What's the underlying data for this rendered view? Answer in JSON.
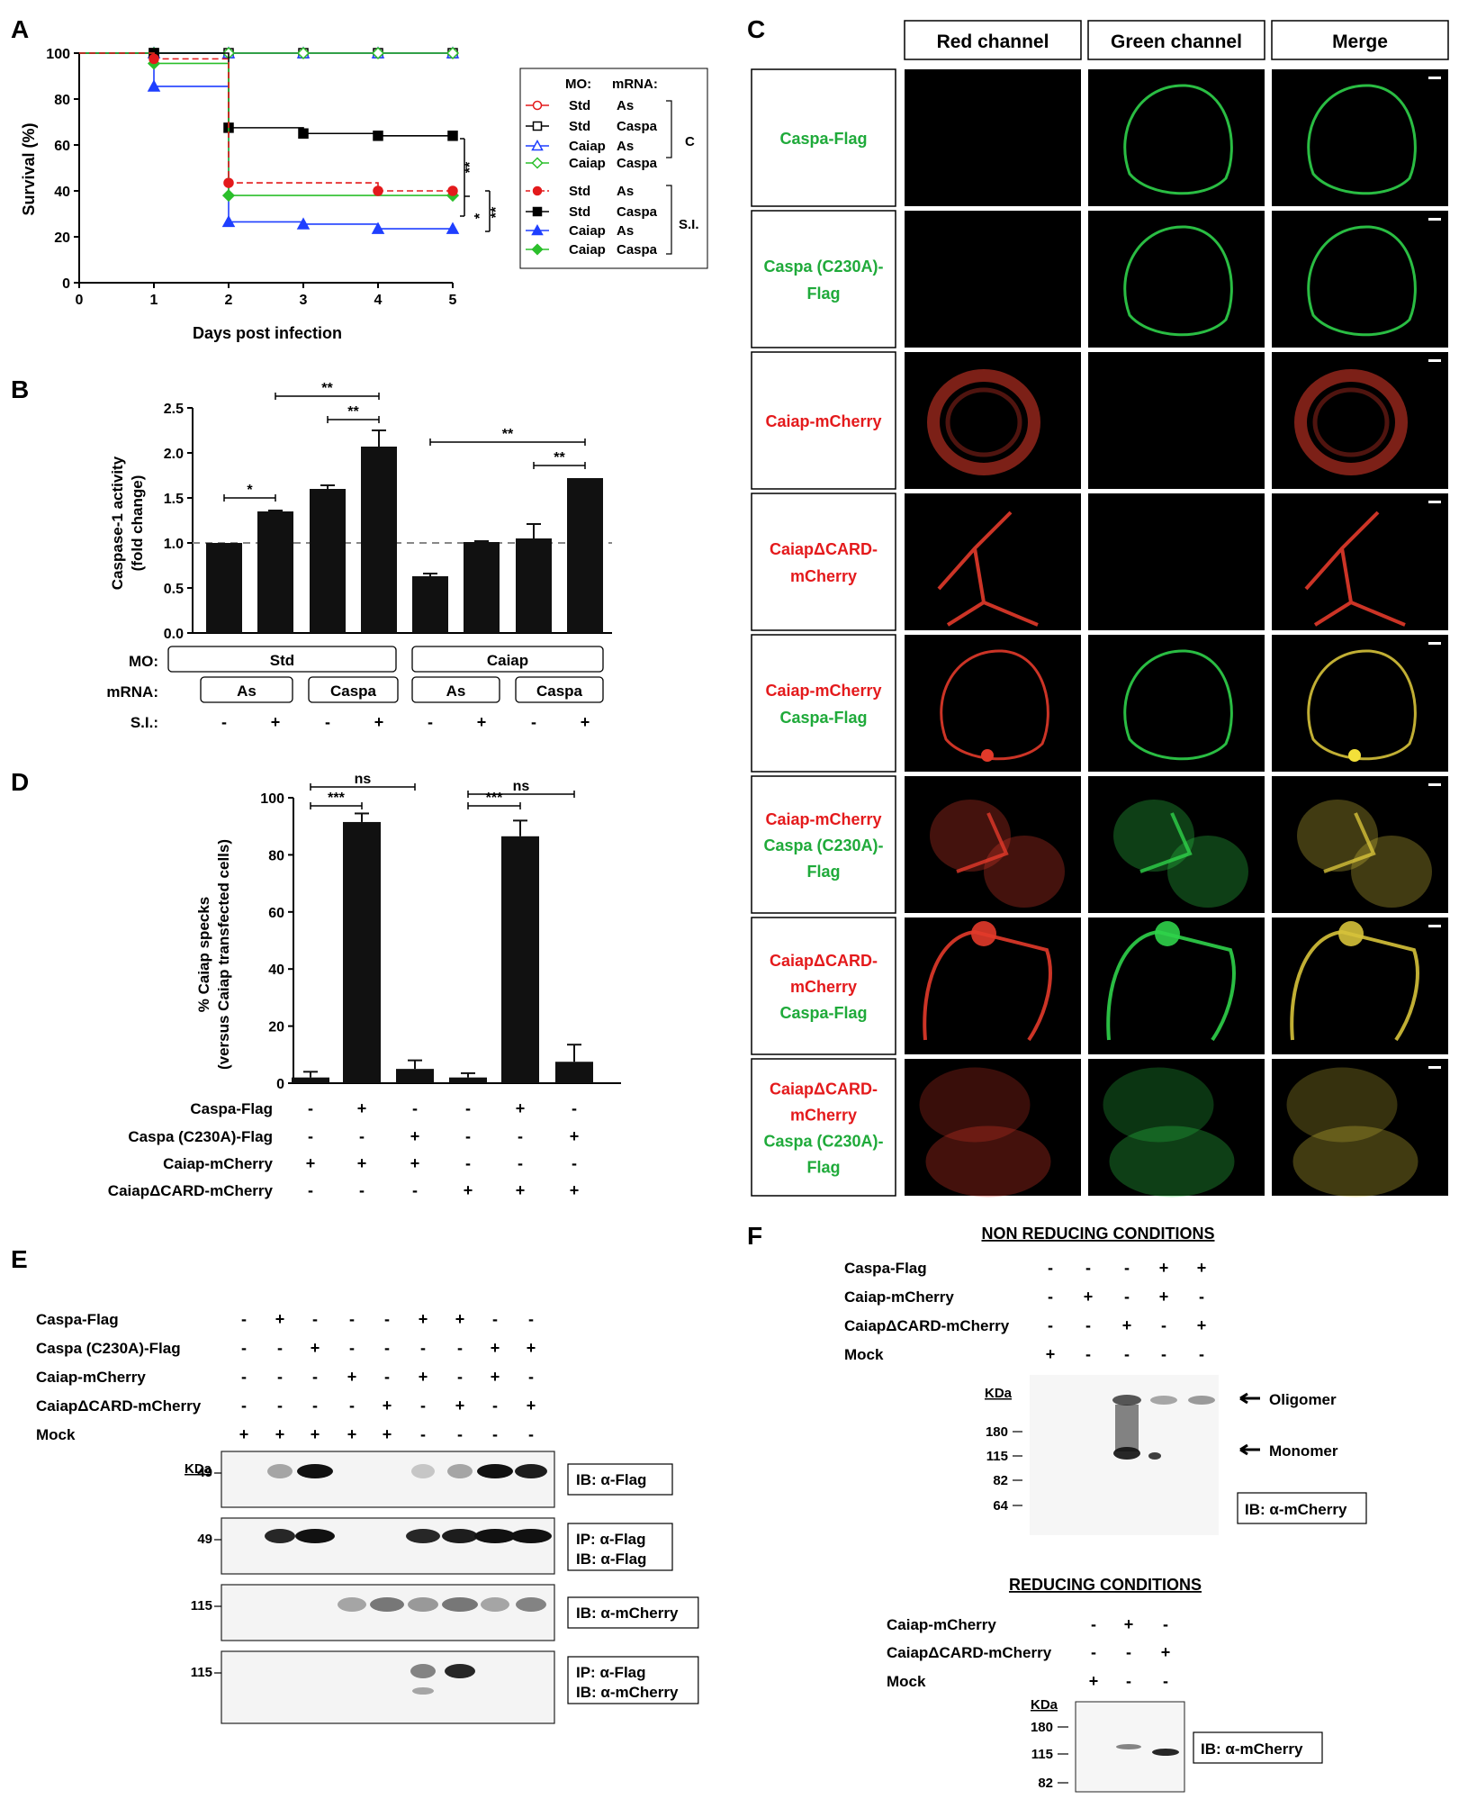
{
  "panel_letters": {
    "A": "A",
    "B": "B",
    "C": "C",
    "D": "D",
    "E": "E",
    "F": "F"
  },
  "panelA": {
    "xlabel": "Days post infection",
    "ylabel": "Survival (%)",
    "legend_header": {
      "mo": "MO:",
      "mrna": "mRNA:"
    },
    "legend_rows": [
      {
        "mo": "Std",
        "mrna": "As"
      },
      {
        "mo": "Std",
        "mrna": "Caspa"
      },
      {
        "mo": "Caiap",
        "mrna": "As"
      },
      {
        "mo": "Caiap",
        "mrna": "Caspa"
      },
      {
        "mo": "Std",
        "mrna": "As"
      },
      {
        "mo": "Std",
        "mrna": "Caspa"
      },
      {
        "mo": "Caiap",
        "mrna": "As"
      },
      {
        "mo": "Caiap",
        "mrna": "Caspa"
      }
    ],
    "group_c": "C",
    "group_si": "S.I.",
    "sig": [
      "**",
      "*",
      "**"
    ],
    "colors": {
      "red": "#e31a1c",
      "black": "#000000",
      "blue": "#1f3fff",
      "green": "#2bbf2b"
    }
  },
  "panelB": {
    "ylabel_1": "Caspase-1 activity",
    "ylabel_2": "(fold change)",
    "row_labels": {
      "mo": "MO:",
      "mrna": "mRNA:",
      "si": "S.I.:"
    },
    "mo_boxes": [
      "Std",
      "Caiap"
    ],
    "mrna_boxes": [
      "As",
      "Caspa",
      "As",
      "Caspa"
    ],
    "si_signs": [
      "-",
      "+",
      "-",
      "+",
      "-",
      "+",
      "-",
      "+"
    ],
    "sig": [
      "*",
      "**",
      "**",
      "**",
      "**"
    ]
  },
  "panelC": {
    "headers": [
      "Red channel",
      "Green channel",
      "Merge"
    ],
    "rows": [
      {
        "lines": [
          {
            "t": "Caspa-Flag",
            "c": "green"
          }
        ]
      },
      {
        "lines": [
          {
            "t": "Caspa (C230A)-",
            "c": "green"
          },
          {
            "t": "Flag",
            "c": "green"
          }
        ]
      },
      {
        "lines": [
          {
            "t": "Caiap-mCherry",
            "c": "red"
          }
        ]
      },
      {
        "lines": [
          {
            "t": "CaiapΔCARD-",
            "c": "red"
          },
          {
            "t": "mCherry",
            "c": "red"
          }
        ]
      },
      {
        "lines": [
          {
            "t": "Caiap-mCherry",
            "c": "red"
          },
          {
            "t": "Caspa-Flag",
            "c": "green"
          }
        ]
      },
      {
        "lines": [
          {
            "t": "Caiap-mCherry",
            "c": "red"
          },
          {
            "t": "Caspa (C230A)-",
            "c": "green"
          },
          {
            "t": "Flag",
            "c": "green"
          }
        ]
      },
      {
        "lines": [
          {
            "t": "CaiapΔCARD-",
            "c": "red"
          },
          {
            "t": "mCherry",
            "c": "red"
          },
          {
            "t": "Caspa-Flag",
            "c": "green"
          }
        ]
      },
      {
        "lines": [
          {
            "t": "CaiapΔCARD-",
            "c": "red"
          },
          {
            "t": "mCherry",
            "c": "red"
          },
          {
            "t": "Caspa (C230A)-",
            "c": "green"
          },
          {
            "t": "Flag",
            "c": "green"
          }
        ]
      }
    ],
    "colors": {
      "red": "#e41a1c",
      "green": "#1faa3a"
    }
  },
  "panelD": {
    "ylabel_1": "% Caiap specks",
    "ylabel_2": "(versus Caiap transfected cells)",
    "sig": [
      "***",
      "ns",
      "***",
      "ns"
    ],
    "conditions": [
      {
        "label": "Caspa-Flag",
        "signs": [
          "-",
          "+",
          "-",
          "-",
          "+",
          "-"
        ]
      },
      {
        "label": "Caspa (C230A)-Flag",
        "signs": [
          "-",
          "-",
          "+",
          "-",
          "-",
          "+"
        ]
      },
      {
        "label": "Caiap-mCherry",
        "signs": [
          "+",
          "+",
          "+",
          "-",
          "-",
          "-"
        ]
      },
      {
        "label": "CaiapΔCARD-mCherry",
        "signs": [
          "-",
          "-",
          "-",
          "+",
          "+",
          "+"
        ]
      }
    ]
  },
  "panelE": {
    "conditions": [
      {
        "label": "Caspa-Flag",
        "signs": [
          "-",
          "+",
          "-",
          "-",
          "-",
          "+",
          "+",
          "-",
          "-"
        ]
      },
      {
        "label": "Caspa (C230A)-Flag",
        "signs": [
          "-",
          "-",
          "+",
          "-",
          "-",
          "-",
          "-",
          "+",
          "+"
        ]
      },
      {
        "label": "Caiap-mCherry",
        "signs": [
          "-",
          "-",
          "-",
          "+",
          "-",
          "+",
          "-",
          "+",
          "-"
        ]
      },
      {
        "label": "CaiapΔCARD-mCherry",
        "signs": [
          "-",
          "-",
          "-",
          "-",
          "+",
          "-",
          "+",
          "-",
          "+"
        ]
      },
      {
        "label": "Mock",
        "signs": [
          "+",
          "+",
          "+",
          "+",
          "+",
          "-",
          "-",
          "-",
          "-"
        ]
      }
    ],
    "kda": "KDa",
    "blots": [
      {
        "marker": "49",
        "labels": [
          "IB: α-Flag"
        ]
      },
      {
        "marker": "49",
        "labels": [
          "IP: α-Flag",
          "IB: α-Flag"
        ]
      },
      {
        "marker": "115",
        "labels": [
          "IB: α-mCherry"
        ]
      },
      {
        "marker": "115",
        "labels": [
          "IP: α-Flag",
          "IB: α-mCherry"
        ]
      }
    ]
  },
  "panelF": {
    "title_nonreducing": "NON REDUCING CONDITIONS",
    "title_reducing": "REDUCING CONDITIONS",
    "nr_conditions": [
      {
        "label": "Caspa-Flag",
        "signs": [
          "-",
          "-",
          "-",
          "+",
          "+"
        ]
      },
      {
        "label": "Caiap-mCherry",
        "signs": [
          "-",
          "+",
          "-",
          "+",
          "-"
        ]
      },
      {
        "label": "CaiapΔCARD-mCherry",
        "signs": [
          "-",
          "-",
          "+",
          "-",
          "+"
        ]
      },
      {
        "label": "Mock",
        "signs": [
          "+",
          "-",
          "-",
          "-",
          "-"
        ]
      }
    ],
    "nr_markers": [
      "180",
      "115",
      "82",
      "64"
    ],
    "oligomer": "Oligomer",
    "monomer": "Monomer",
    "ib": "IB: α-mCherry",
    "kda": "KDa",
    "r_conditions": [
      {
        "label": "Caiap-mCherry",
        "signs": [
          "-",
          "+",
          "-"
        ]
      },
      {
        "label": "CaiapΔCARD-mCherry",
        "signs": [
          "-",
          "-",
          "+"
        ]
      },
      {
        "label": "Mock",
        "signs": [
          "+",
          "-",
          "-"
        ]
      }
    ],
    "r_markers": [
      "180",
      "115",
      "82"
    ]
  },
  "chart_data": [
    {
      "type": "line",
      "xlabel": "Days post infection",
      "ylabel": "Survival (%)",
      "xlim": [
        0,
        5
      ],
      "ylim": [
        0,
        100
      ],
      "xticks": [
        0,
        1,
        2,
        3,
        4,
        5
      ],
      "yticks": [
        0,
        20,
        40,
        60,
        80,
        100
      ],
      "series": [
        {
          "name": "Std / As (C)",
          "color": "#e31a1c",
          "marker": "open-circle",
          "x": [
            0,
            1,
            2,
            3,
            4,
            5
          ],
          "y": [
            100,
            100,
            100,
            100,
            100,
            100
          ]
        },
        {
          "name": "Std / Caspa (C)",
          "color": "#000000",
          "marker": "open-square",
          "x": [
            0,
            1,
            2,
            3,
            4,
            5
          ],
          "y": [
            100,
            100,
            100,
            100,
            100,
            100
          ]
        },
        {
          "name": "Caiap / As (C)",
          "color": "#1f3fff",
          "marker": "open-triangle",
          "x": [
            0,
            1,
            2,
            3,
            4,
            5
          ],
          "y": [
            100,
            100,
            100,
            100,
            100,
            100
          ]
        },
        {
          "name": "Caiap / Caspa (C)",
          "color": "#2bbf2b",
          "marker": "open-diamond",
          "x": [
            0,
            1,
            2,
            3,
            4,
            5
          ],
          "y": [
            100,
            100,
            100,
            100,
            100,
            100
          ]
        },
        {
          "name": "Std / As (S.I.)",
          "color": "#e31a1c",
          "marker": "filled-circle",
          "dashed": true,
          "x": [
            0,
            1,
            2,
            4,
            5
          ],
          "y": [
            100,
            97.5,
            43.5,
            40,
            40
          ]
        },
        {
          "name": "Std / Caspa (S.I.)",
          "color": "#000000",
          "marker": "filled-square",
          "x": [
            0,
            1,
            2,
            3,
            4,
            5
          ],
          "y": [
            100,
            100,
            67.5,
            65,
            64,
            64
          ]
        },
        {
          "name": "Caiap / As (S.I.)",
          "color": "#1f3fff",
          "marker": "filled-triangle",
          "x": [
            0,
            1,
            2,
            3,
            4,
            5
          ],
          "y": [
            100,
            85.5,
            26.5,
            25.5,
            23.5,
            23.5
          ]
        },
        {
          "name": "Caiap / Caspa (S.I.)",
          "color": "#2bbf2b",
          "marker": "filled-diamond",
          "x": [
            0,
            1,
            2,
            5
          ],
          "y": [
            100,
            95.5,
            38,
            38
          ]
        }
      ]
    },
    {
      "type": "bar",
      "ylabel": "Caspase-1 activity (fold change)",
      "ylim": [
        0,
        2.5
      ],
      "yticks": [
        0.0,
        0.5,
        1.0,
        1.5,
        2.0,
        2.5
      ],
      "reference_line": 1.0,
      "values": [
        1.0,
        1.35,
        1.6,
        2.07,
        0.63,
        1.01,
        1.05,
        1.72
      ],
      "errors": [
        0.0,
        0.01,
        0.04,
        0.18,
        0.03,
        0.01,
        0.16,
        0.0
      ]
    },
    {
      "type": "bar",
      "ylabel": "% Caiap specks (versus Caiap transfected cells)",
      "ylim": [
        0,
        100
      ],
      "yticks": [
        0,
        20,
        40,
        60,
        80,
        100
      ],
      "values": [
        2,
        91.5,
        5,
        2,
        86.5,
        7.5
      ],
      "errors": [
        2,
        3,
        3,
        1.5,
        5.5,
        6
      ]
    }
  ]
}
